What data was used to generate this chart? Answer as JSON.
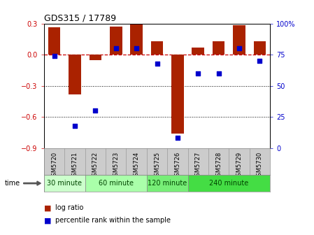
{
  "title": "GDS315 / 17789",
  "samples": [
    "GSM5720",
    "GSM5721",
    "GSM5722",
    "GSM5723",
    "GSM5724",
    "GSM5725",
    "GSM5726",
    "GSM5727",
    "GSM5728",
    "GSM5729",
    "GSM5730"
  ],
  "log_ratio": [
    0.265,
    -0.38,
    -0.055,
    0.27,
    0.3,
    0.13,
    -0.76,
    0.07,
    0.13,
    0.285,
    0.13
  ],
  "percentile": [
    74,
    18,
    30,
    80,
    80,
    68,
    8,
    60,
    60,
    80,
    70
  ],
  "ylim_left": [
    -0.9,
    0.3
  ],
  "ylim_right": [
    0,
    100
  ],
  "yticks_left": [
    -0.9,
    -0.6,
    -0.3,
    0.0,
    0.3
  ],
  "yticks_right": [
    0,
    25,
    50,
    75,
    100
  ],
  "group_bounds": [
    [
      0,
      1,
      "30 minute",
      "#ccffcc"
    ],
    [
      2,
      4,
      "60 minute",
      "#aaffaa"
    ],
    [
      5,
      6,
      "120 minute",
      "#77ee77"
    ],
    [
      7,
      10,
      "240 minute",
      "#44dd44"
    ]
  ],
  "bar_color": "#aa2200",
  "dot_color": "#0000cc",
  "hline_color": "#cc0000",
  "bg_color": "#ffffff",
  "sample_bg": "#cccccc",
  "legend_log": "log ratio",
  "legend_pct": "percentile rank within the sample"
}
